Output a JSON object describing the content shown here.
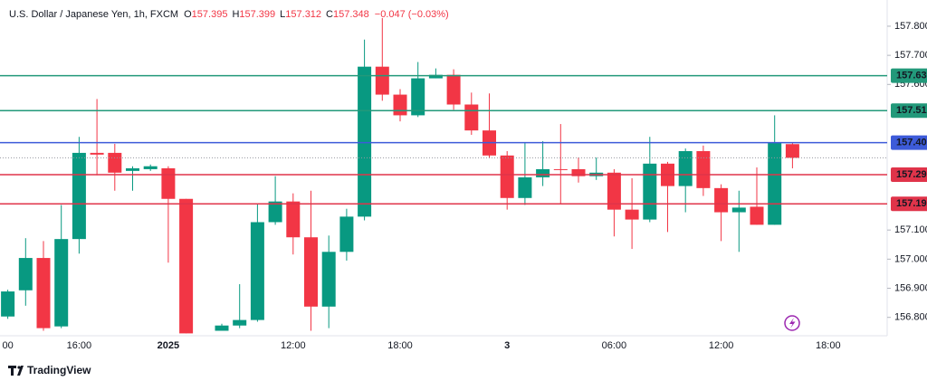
{
  "chart_data": {
    "type": "candlestick",
    "title": "U.S. Dollar / Japanese Yen, 1h, FXCM",
    "header_ohlc": [
      {
        "letter": "O",
        "value": "157.395"
      },
      {
        "letter": "H",
        "value": "157.399"
      },
      {
        "letter": "L",
        "value": "157.312"
      },
      {
        "letter": "C",
        "value": "157.348"
      }
    ],
    "header_change": "−0.047 (−0.03%)",
    "up_color": "#089981",
    "down_color": "#f23645",
    "categories": [
      "00",
      null,
      null,
      null,
      "16:00",
      null,
      null,
      null,
      null,
      "2025",
      null,
      null,
      null,
      null,
      null,
      null,
      "12:00",
      null,
      null,
      null,
      null,
      null,
      "18:00",
      null,
      null,
      null,
      null,
      null,
      "3",
      null,
      null,
      null,
      null,
      null,
      "06:00",
      null,
      null,
      null,
      null,
      null,
      "12:00",
      null,
      null,
      null,
      null,
      null,
      "18:00"
    ],
    "open": [
      156.803,
      156.893,
      157.004,
      156.769,
      157.069,
      157.365,
      157.365,
      157.303,
      157.309,
      157.312,
      157.207,
      null,
      156.754,
      156.772,
      156.791,
      157.127,
      157.198,
      157.075,
      156.837,
      157.025,
      157.146,
      157.661,
      157.565,
      157.494,
      157.621,
      157.633,
      157.531,
      157.442,
      157.356,
      157.21,
      157.281,
      157.309,
      157.309,
      157.285,
      157.297,
      157.17,
      157.136,
      157.328,
      157.251,
      157.371,
      157.244,
      157.161,
      157.18,
      157.118,
      157.395,
      null,
      null
    ],
    "high": [
      156.895,
      157.072,
      157.062,
      157.186,
      157.42,
      157.55,
      157.396,
      157.319,
      157.325,
      157.319,
      157.207,
      null,
      156.778,
      156.914,
      157.192,
      157.285,
      157.226,
      157.235,
      157.081,
      157.173,
      157.754,
      157.828,
      157.584,
      157.677,
      157.655,
      157.652,
      157.572,
      157.569,
      157.371,
      157.402,
      157.405,
      157.464,
      157.349,
      157.349,
      157.309,
      157.278,
      157.42,
      157.334,
      157.38,
      157.39,
      157.257,
      157.235,
      157.315,
      157.494,
      157.399,
      null,
      null
    ],
    "low": [
      156.795,
      156.84,
      156.754,
      156.763,
      157.019,
      157.288,
      157.235,
      157.235,
      157.303,
      156.988,
      156.745,
      null,
      156.754,
      156.763,
      156.785,
      157.118,
      157.016,
      156.754,
      156.763,
      156.995,
      157.133,
      157.544,
      157.473,
      157.488,
      157.621,
      157.513,
      157.427,
      157.346,
      157.17,
      157.186,
      157.251,
      157.192,
      157.263,
      157.272,
      157.078,
      157.035,
      157.127,
      157.093,
      157.161,
      157.217,
      157.062,
      157.025,
      157.118,
      157.118,
      157.312,
      null,
      null
    ],
    "close": [
      156.889,
      157.004,
      156.763,
      157.069,
      157.365,
      157.359,
      157.297,
      157.312,
      157.319,
      157.207,
      156.745,
      null,
      156.772,
      156.791,
      157.127,
      157.198,
      157.075,
      156.837,
      157.025,
      157.146,
      157.661,
      157.565,
      157.494,
      157.621,
      157.633,
      157.531,
      157.442,
      157.356,
      157.21,
      157.281,
      157.309,
      157.306,
      157.285,
      157.297,
      157.17,
      157.136,
      157.328,
      157.251,
      157.371,
      157.244,
      157.161,
      157.177,
      157.118,
      157.399,
      157.348,
      null,
      null
    ],
    "ylim": [
      156.74,
      157.89
    ],
    "yticks": [
      {
        "value": 156.8,
        "label": "156.800"
      },
      {
        "value": 156.9,
        "label": "156.900"
      },
      {
        "value": 157.0,
        "label": "157.000"
      },
      {
        "value": 157.1,
        "label": "157.100"
      },
      {
        "value": 157.6,
        "label": "157.600"
      },
      {
        "value": 157.7,
        "label": "157.700"
      },
      {
        "value": 157.8,
        "label": "157.800"
      }
    ],
    "levels": [
      {
        "value": 157.63,
        "label": "157.630",
        "color": "#22997a"
      },
      {
        "value": 157.51,
        "label": "157.510",
        "color": "#22997a"
      },
      {
        "value": 157.4,
        "label": "157.400",
        "color": "#3d5bd9"
      },
      {
        "value": 157.29,
        "label": "157.290",
        "color": "#e0344a"
      },
      {
        "value": 157.19,
        "label": "157.190",
        "color": "#e0344a"
      }
    ],
    "footer": "TradingView"
  }
}
